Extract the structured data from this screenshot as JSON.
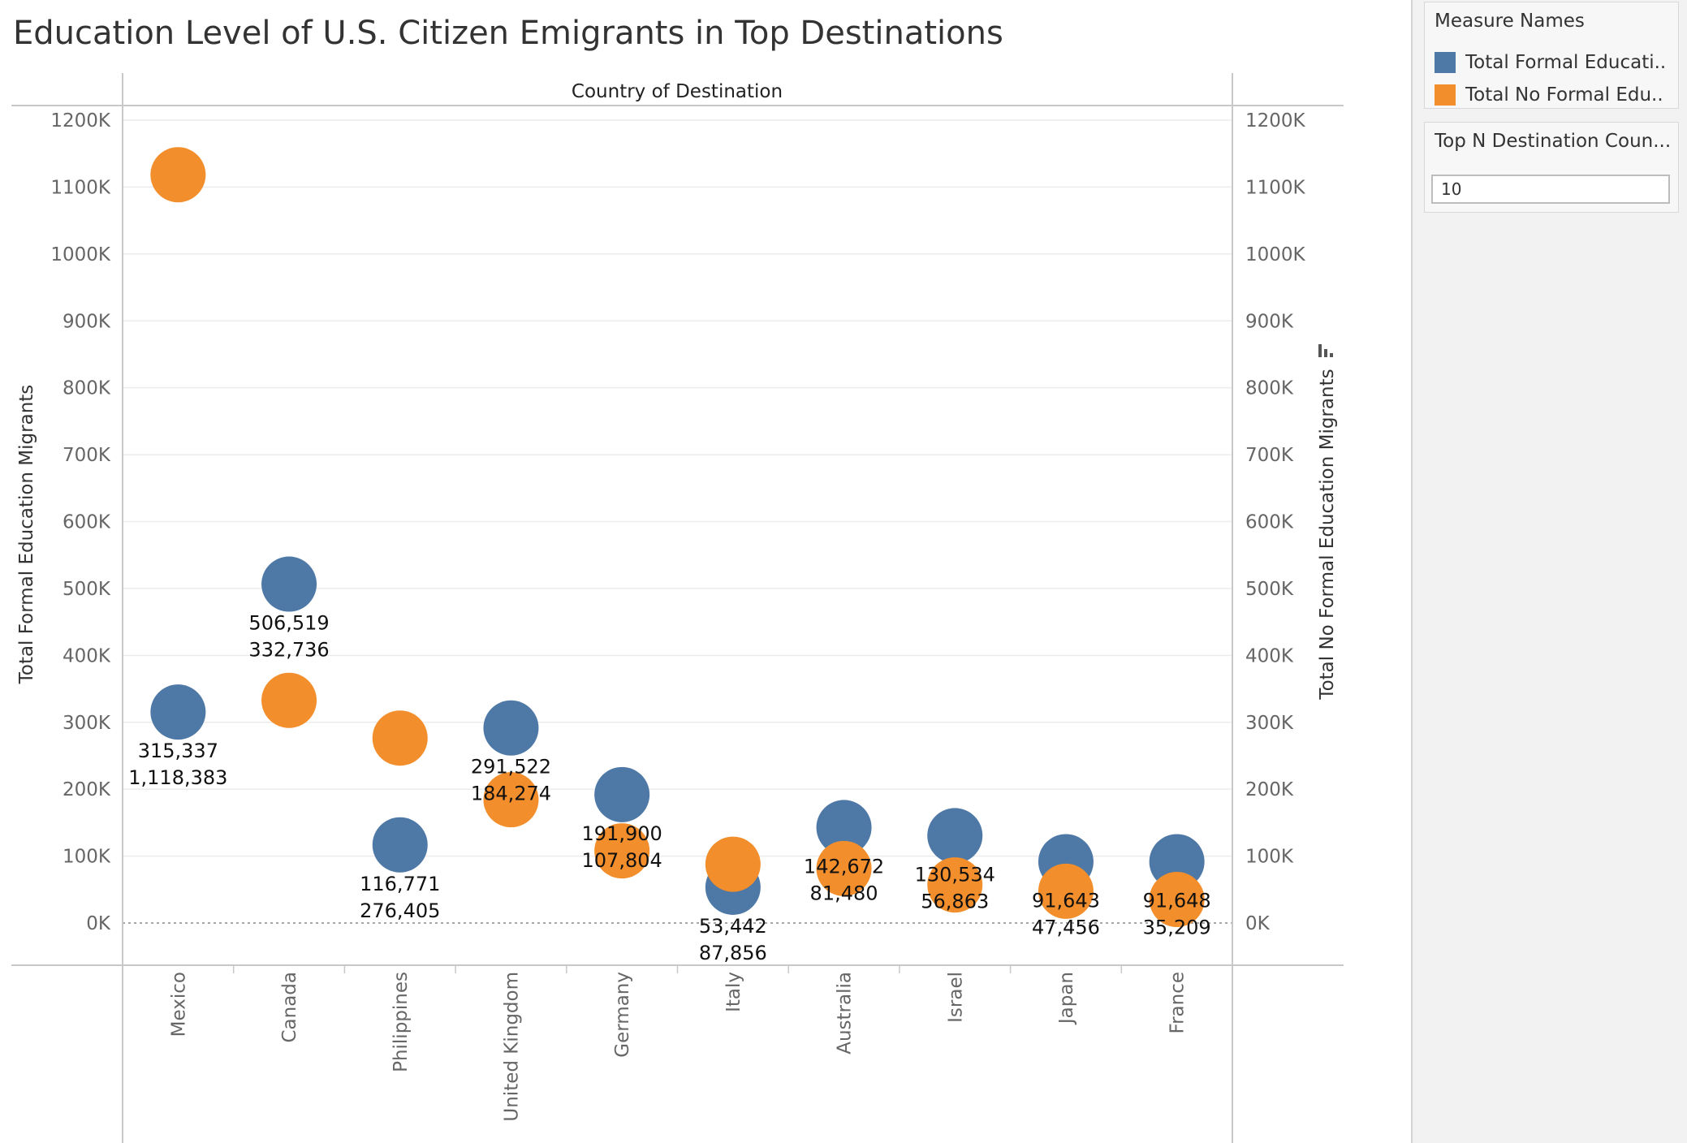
{
  "page": {
    "title": "Education Level of U.S. Citizen Emigrants in Top Destinations"
  },
  "legend": {
    "title": "Measure Names",
    "items": [
      {
        "label": "Total Formal Educati..",
        "color": "#4e79a7"
      },
      {
        "label": "Total No Formal Edu..",
        "color": "#f28e2b"
      }
    ]
  },
  "filter": {
    "title": "Top N Destination Coun...",
    "value": "10"
  },
  "chart_data": {
    "type": "scatter",
    "title": "Education Level of U.S. Citizen Emigrants in Top Destinations",
    "header": "Country of Destination",
    "ylabel_left": "Total Formal Education Migrants",
    "ylabel_right": "Total No Formal Education Migrants",
    "ylim": [
      0,
      1200000
    ],
    "yticks": [
      "0K",
      "100K",
      "200K",
      "300K",
      "400K",
      "500K",
      "600K",
      "700K",
      "800K",
      "900K",
      "1000K",
      "1100K",
      "1200K"
    ],
    "categories": [
      "Mexico",
      "Canada",
      "Philippines",
      "United Kingdom",
      "Germany",
      "Italy",
      "Australia",
      "Israel",
      "Japan",
      "France"
    ],
    "series": [
      {
        "name": "Total Formal Education Migrants",
        "color": "#4e79a7",
        "values": [
          315337,
          506519,
          116771,
          291522,
          191900,
          53442,
          142672,
          130534,
          91643,
          91648
        ]
      },
      {
        "name": "Total No Formal Education Migrants",
        "color": "#f28e2b",
        "values": [
          1118383,
          332736,
          276405,
          184274,
          107804,
          87856,
          81480,
          56863,
          47456,
          35209
        ]
      }
    ],
    "data_labels": [
      [
        "315,337",
        "1,118,383"
      ],
      [
        "506,519",
        "332,736"
      ],
      [
        "116,771",
        "276,405"
      ],
      [
        "291,522",
        "184,274"
      ],
      [
        "191,900",
        "107,804"
      ],
      [
        "53,442",
        "87,856"
      ],
      [
        "142,672",
        "81,480"
      ],
      [
        "130,534",
        "56,863"
      ],
      [
        "91,643",
        "47,456"
      ],
      [
        "91,648",
        "35,209"
      ]
    ],
    "grid": true,
    "legend_position": "right"
  }
}
